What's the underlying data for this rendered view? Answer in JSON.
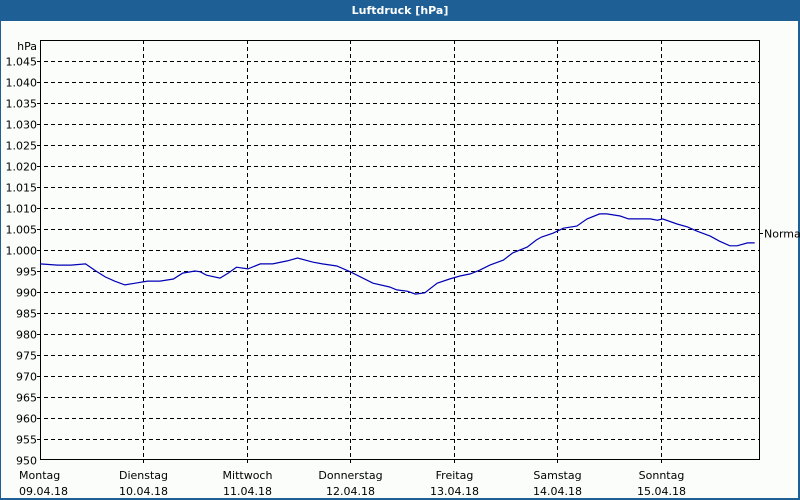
{
  "window": {
    "title": "Luftdruck [hPa]"
  },
  "colors": {
    "titlebar": "#1e6096",
    "background": "#fbfdfb",
    "line": "#0000b4",
    "grid": "#000000"
  },
  "chart_data": {
    "type": "line",
    "title": "Luftdruck [hPa]",
    "xlabel": "",
    "ylabel": "hPa",
    "ylim": [
      950,
      1050
    ],
    "grid": true,
    "y_ticks": [
      950,
      955,
      960,
      965,
      970,
      975,
      980,
      985,
      990,
      995,
      1000,
      1005,
      1010,
      1015,
      1020,
      1025,
      1030,
      1035,
      1040,
      1045
    ],
    "y_tick_labels": [
      "950",
      "955",
      "960",
      "965",
      "970",
      "975",
      "980",
      "985",
      "990",
      "995",
      "1.000",
      "1.005",
      "1.010",
      "1.015",
      "1.020",
      "1.025",
      "1.030",
      "1.035",
      "1.040",
      "1.045"
    ],
    "x_ticks": [
      {
        "day": "Montag",
        "date": "09.04.18"
      },
      {
        "day": "Dienstag",
        "date": "10.04.18"
      },
      {
        "day": "Mittwoch",
        "date": "11.04.18"
      },
      {
        "day": "Donnerstag",
        "date": "12.04.18"
      },
      {
        "day": "Freitag",
        "date": "13.04.18"
      },
      {
        "day": "Samstag",
        "date": "14.04.18"
      },
      {
        "day": "Sonntag",
        "date": "15.04.18"
      }
    ],
    "annotations": [
      {
        "text": "Normal",
        "y": 1004
      }
    ],
    "series": [
      {
        "name": "Luftdruck",
        "x_days": [
          0.0,
          0.17,
          0.3,
          0.44,
          0.54,
          0.63,
          0.72,
          0.82,
          0.92,
          1.04,
          1.16,
          1.29,
          1.38,
          1.5,
          1.55,
          1.61,
          1.74,
          1.82,
          1.9,
          2.01,
          2.13,
          2.25,
          2.39,
          2.49,
          2.64,
          2.73,
          2.87,
          3.0,
          3.22,
          3.38,
          3.45,
          3.55,
          3.63,
          3.72,
          3.84,
          3.96,
          4.06,
          4.16,
          4.25,
          4.35,
          4.48,
          4.57,
          4.71,
          4.8,
          4.85,
          4.96,
          5.06,
          5.19,
          5.29,
          5.41,
          5.48,
          5.61,
          5.69,
          5.9,
          5.97,
          6.02,
          6.16,
          6.26,
          6.35,
          6.48,
          6.57,
          6.67,
          6.74,
          6.84,
          6.91
        ],
        "values": [
          996.7,
          996.4,
          996.4,
          996.7,
          995.0,
          993.6,
          992.6,
          991.7,
          992.1,
          992.6,
          992.6,
          993.1,
          994.5,
          995.0,
          994.8,
          994.0,
          993.3,
          994.5,
          995.9,
          995.5,
          996.7,
          996.7,
          997.4,
          998.1,
          997.1,
          996.7,
          996.2,
          994.8,
          992.1,
          991.2,
          990.5,
          990.2,
          989.5,
          989.8,
          992.1,
          993.1,
          993.8,
          994.3,
          995.2,
          996.4,
          997.6,
          999.3,
          1000.7,
          1002.4,
          1003.1,
          1004.0,
          1005.2,
          1005.7,
          1007.4,
          1008.6,
          1008.6,
          1008.1,
          1007.4,
          1007.4,
          1007.1,
          1007.4,
          1006.2,
          1005.5,
          1004.5,
          1003.3,
          1002.1,
          1001.0,
          1001.0,
          1001.7,
          1001.7
        ]
      }
    ]
  }
}
